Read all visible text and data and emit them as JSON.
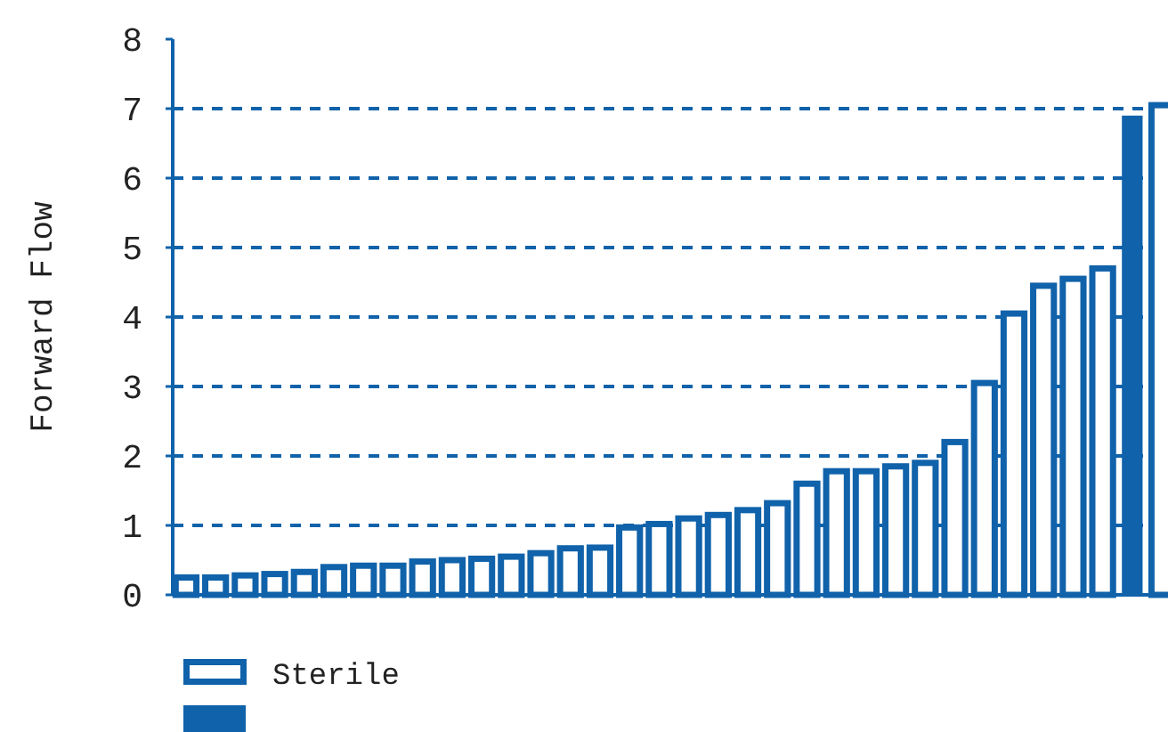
{
  "chart_data": {
    "type": "bar",
    "ylabel": "Forward Flow",
    "categories": [
      null,
      null,
      null,
      null,
      null,
      null,
      null,
      null,
      null,
      null,
      null,
      null,
      null,
      null,
      null,
      null,
      null,
      null,
      null,
      null,
      null,
      null,
      null,
      null,
      null,
      null,
      null,
      null,
      null,
      null,
      null,
      null,
      null,
      null
    ],
    "series": [
      {
        "name": "Sterile",
        "color": "#1062aa",
        "values": [
          0.25,
          0.25,
          0.28,
          0.3,
          0.33,
          0.4,
          0.42,
          0.42,
          0.48,
          0.5,
          0.52,
          0.55,
          0.6,
          0.67,
          0.68,
          0.97,
          1.02,
          1.1,
          1.15,
          1.22,
          1.32,
          1.6,
          1.78,
          1.78,
          1.85,
          1.9,
          2.2,
          3.05,
          4.05,
          4.45,
          4.55,
          4.7,
          null,
          7.05
        ]
      },
      {
        "color": "#1062aa",
        "values": [
          null,
          null,
          null,
          null,
          null,
          null,
          null,
          null,
          null,
          null,
          null,
          null,
          null,
          null,
          null,
          null,
          null,
          null,
          null,
          null,
          null,
          null,
          null,
          null,
          null,
          null,
          null,
          null,
          null,
          null,
          null,
          null,
          6.9,
          null
        ]
      }
    ],
    "ylim": [
      0,
      8
    ],
    "yticks": [
      0,
      1,
      2,
      3,
      4,
      5,
      6,
      7,
      8
    ],
    "grid": "y",
    "line_style": "dashed",
    "legend": "bottom left"
  }
}
